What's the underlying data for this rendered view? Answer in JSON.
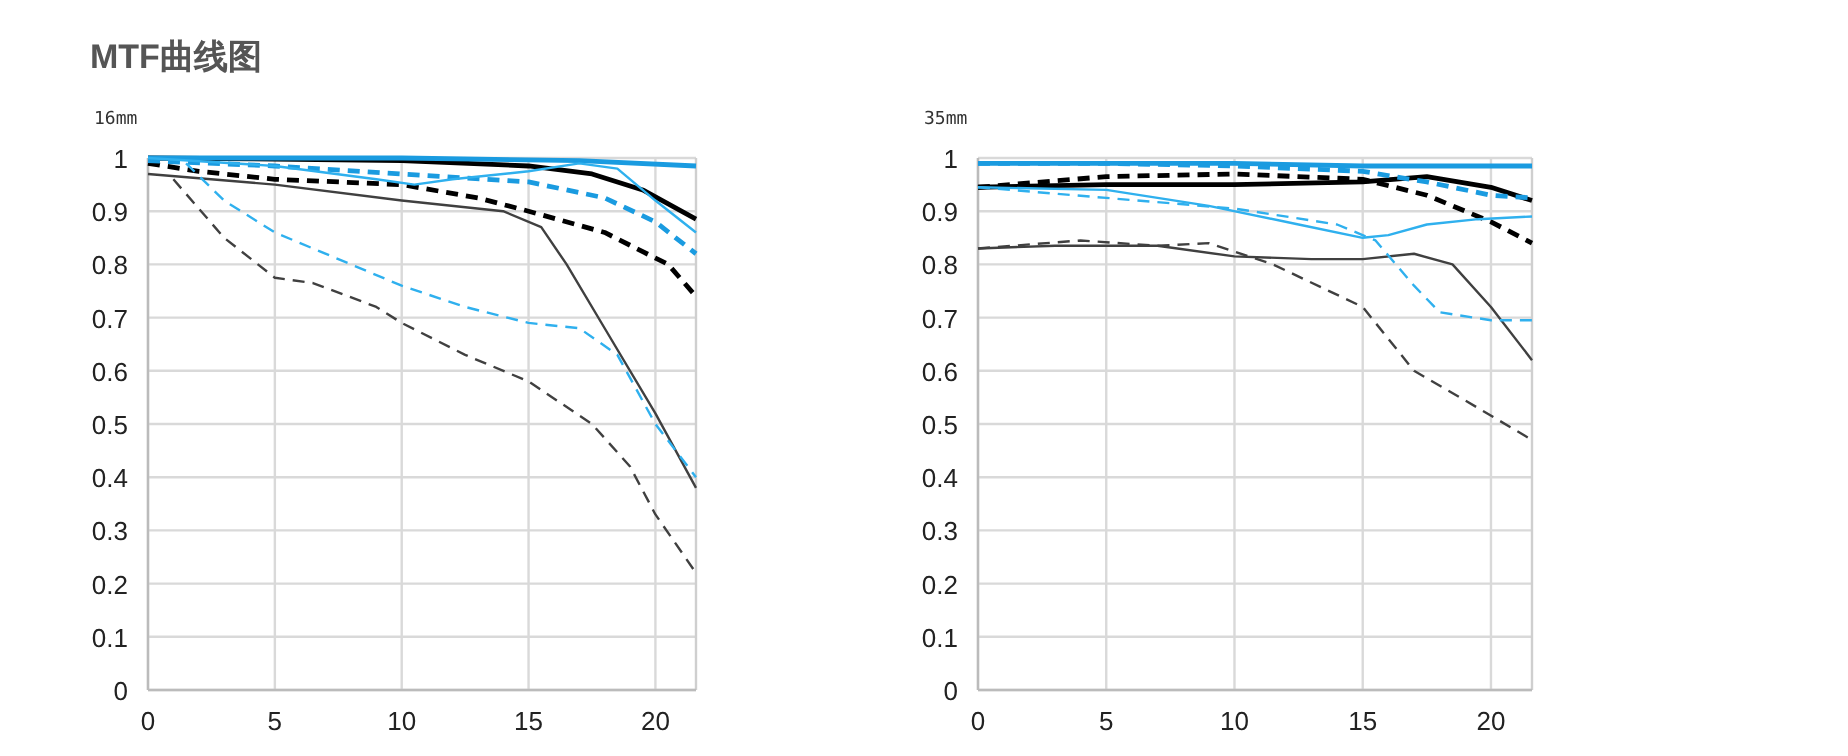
{
  "chart_data": [
    {
      "type": "line",
      "title": "MTF曲线图",
      "subtitle": "16mm",
      "xlim": [
        0,
        21.6
      ],
      "xticks": [
        0,
        5,
        10,
        15,
        20
      ],
      "ylim": [
        0,
        1
      ],
      "yticks": [
        0,
        0.1,
        0.2,
        0.3,
        0.4,
        0.5,
        0.6,
        0.7,
        0.8,
        0.9,
        1
      ],
      "grid": true,
      "marker": "none",
      "series": [
        {
          "color": "#000000",
          "line_style": "solid",
          "x": [
            0,
            5,
            10,
            15,
            17.5,
            19.5,
            21.6
          ],
          "values": [
            1.0,
            0.998,
            0.995,
            0.985,
            0.97,
            0.94,
            0.885
          ]
        },
        {
          "color": "#000000",
          "line_style": "dashed",
          "x": [
            0,
            2,
            5,
            10,
            13,
            15,
            18,
            20.5,
            21.6
          ],
          "values": [
            0.99,
            0.975,
            0.96,
            0.95,
            0.925,
            0.9,
            0.86,
            0.8,
            0.74
          ]
        },
        {
          "color": "#1a9be0",
          "line_style": "solid",
          "x": [
            0,
            10,
            17,
            21.6
          ],
          "values": [
            1.0,
            1.0,
            0.995,
            0.985
          ]
        },
        {
          "color": "#1a9be0",
          "line_style": "dashed",
          "x": [
            0,
            5,
            10,
            15,
            18,
            20,
            21.6
          ],
          "values": [
            0.995,
            0.985,
            0.97,
            0.955,
            0.925,
            0.88,
            0.82
          ]
        },
        {
          "color": "#404040",
          "line_style": "solid",
          "x": [
            0,
            5,
            10,
            14,
            15.5,
            16.5,
            18,
            20,
            21.6
          ],
          "values": [
            0.97,
            0.95,
            0.92,
            0.9,
            0.87,
            0.8,
            0.68,
            0.52,
            0.38
          ]
        },
        {
          "color": "#404040",
          "line_style": "dashed",
          "x": [
            1,
            3,
            5,
            6.5,
            9,
            10,
            12.5,
            15,
            17.5,
            19,
            20,
            21.6
          ],
          "values": [
            0.96,
            0.85,
            0.775,
            0.765,
            0.72,
            0.69,
            0.63,
            0.58,
            0.5,
            0.42,
            0.33,
            0.22
          ]
        },
        {
          "color": "#2fb0ee",
          "line_style": "solid",
          "x": [
            0,
            5,
            9,
            10.5,
            12,
            15,
            17,
            18.5,
            20,
            21.6
          ],
          "values": [
            1.0,
            0.985,
            0.96,
            0.95,
            0.96,
            0.975,
            0.99,
            0.98,
            0.92,
            0.86
          ]
        },
        {
          "color": "#2fb0ee",
          "line_style": "dashed",
          "x": [
            1.5,
            3,
            5,
            8,
            10,
            12.5,
            15,
            17,
            18.5,
            20,
            21.6
          ],
          "values": [
            0.99,
            0.92,
            0.86,
            0.8,
            0.76,
            0.72,
            0.69,
            0.68,
            0.63,
            0.5,
            0.4
          ]
        }
      ]
    },
    {
      "type": "line",
      "subtitle": "35mm",
      "xlim": [
        0,
        21.6
      ],
      "xticks": [
        0,
        5,
        10,
        15,
        20
      ],
      "ylim": [
        0,
        1
      ],
      "yticks": [
        0,
        0.1,
        0.2,
        0.3,
        0.4,
        0.5,
        0.6,
        0.7,
        0.8,
        0.9,
        1
      ],
      "grid": true,
      "marker": "none",
      "series": [
        {
          "color": "#000000",
          "line_style": "solid",
          "x": [
            0,
            5,
            10,
            15,
            17.5,
            20,
            21.6
          ],
          "values": [
            0.945,
            0.95,
            0.95,
            0.955,
            0.965,
            0.945,
            0.92
          ]
        },
        {
          "color": "#000000",
          "line_style": "dashed",
          "x": [
            0,
            5,
            10,
            15,
            17.5,
            20,
            21.6
          ],
          "values": [
            0.945,
            0.965,
            0.97,
            0.96,
            0.93,
            0.88,
            0.84
          ]
        },
        {
          "color": "#1a9be0",
          "line_style": "solid",
          "x": [
            0,
            10,
            15,
            21.6
          ],
          "values": [
            0.99,
            0.99,
            0.985,
            0.985
          ]
        },
        {
          "color": "#1a9be0",
          "line_style": "dashed",
          "x": [
            0,
            5,
            10,
            15,
            17.5,
            20,
            21.6
          ],
          "values": [
            0.99,
            0.99,
            0.985,
            0.975,
            0.955,
            0.93,
            0.925
          ]
        },
        {
          "color": "#404040",
          "line_style": "solid",
          "x": [
            0,
            3,
            7,
            10,
            13,
            15,
            17,
            18.5,
            20,
            21.6
          ],
          "values": [
            0.83,
            0.835,
            0.835,
            0.815,
            0.81,
            0.81,
            0.82,
            0.8,
            0.72,
            0.62
          ]
        },
        {
          "color": "#404040",
          "line_style": "dashed",
          "x": [
            0,
            4,
            7,
            9,
            11.5,
            15,
            17,
            19.5,
            21.6
          ],
          "values": [
            0.83,
            0.845,
            0.835,
            0.84,
            0.8,
            0.72,
            0.6,
            0.53,
            0.47
          ]
        },
        {
          "color": "#2fb0ee",
          "line_style": "solid",
          "x": [
            0,
            5,
            9,
            12.5,
            15,
            16,
            17.5,
            19.5,
            21.6
          ],
          "values": [
            0.945,
            0.94,
            0.91,
            0.875,
            0.85,
            0.855,
            0.875,
            0.885,
            0.89
          ]
        },
        {
          "color": "#2fb0ee",
          "line_style": "dashed",
          "x": [
            0,
            5,
            10,
            14,
            15.5,
            17,
            18,
            20,
            21.6
          ],
          "values": [
            0.945,
            0.925,
            0.905,
            0.875,
            0.845,
            0.76,
            0.71,
            0.695,
            0.695
          ]
        }
      ]
    }
  ]
}
